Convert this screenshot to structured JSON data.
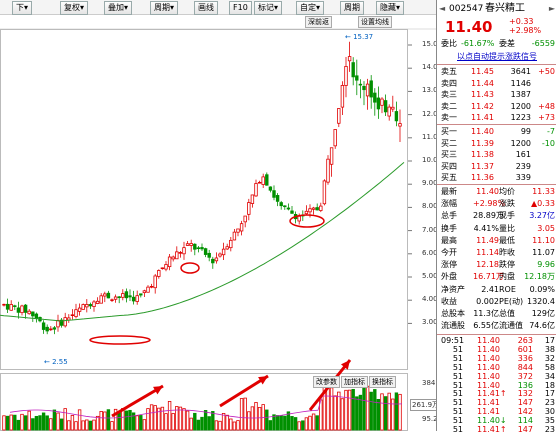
{
  "toolbar": {
    "buttons": [
      {
        "label": "下",
        "has_arrow": true
      },
      {
        "label": "复权",
        "has_arrow": true
      },
      {
        "label": "叠加",
        "has_arrow": true
      },
      {
        "label": "周期",
        "has_arrow": true
      },
      {
        "label": "画线",
        "has_arrow": false
      },
      {
        "label": "F10",
        "has_arrow": false
      },
      {
        "label": "标记",
        "has_arrow": true
      },
      {
        "label": "自定",
        "has_arrow": true
      },
      {
        "label": "周期",
        "has_arrow": false
      },
      {
        "label": "隐藏",
        "has_arrow": true
      }
    ],
    "sub_buttons": [
      "深前返",
      "设置均线"
    ]
  },
  "chart": {
    "price_axis": [
      "15.00",
      "14.00",
      "13.00",
      "12.00",
      "11.00",
      "10.00",
      "9.00",
      "8.00",
      "7.00",
      "6.00",
      "5.00",
      "4.00",
      "3.00"
    ],
    "high_label": "15.37",
    "low_label": "2.55",
    "volume_axis": [
      "384.00",
      "261.9万",
      "95.20"
    ],
    "volume_buttons": [
      "改参数",
      "加指标",
      "换指标"
    ],
    "colors": {
      "up": "#e00000",
      "down": "#009000",
      "ma": "#2a9a2a",
      "arrow": "#e00000"
    }
  },
  "quote": {
    "code": "002547",
    "name": "春兴精工",
    "price": "11.40",
    "change": "+0.33",
    "change_pct": "+2.98%",
    "weibi_label": "委比",
    "weibi": "-61.67%",
    "weicha_label": "委差",
    "weicha": "-6559",
    "notice": "以点自动提示涨跌信号",
    "asks": [
      {
        "label": "卖五",
        "price": "11.45",
        "vol": "3641",
        "chg": "+50"
      },
      {
        "label": "卖四",
        "price": "11.44",
        "vol": "1146",
        "chg": ""
      },
      {
        "label": "卖三",
        "price": "11.43",
        "vol": "1387",
        "chg": ""
      },
      {
        "label": "卖二",
        "price": "11.42",
        "vol": "1200",
        "chg": "+48"
      },
      {
        "label": "卖一",
        "price": "11.41",
        "vol": "1223",
        "chg": "+73"
      }
    ],
    "bids": [
      {
        "label": "买一",
        "price": "11.40",
        "vol": "99",
        "chg": "-7"
      },
      {
        "label": "买二",
        "price": "11.39",
        "vol": "1200",
        "chg": "-10"
      },
      {
        "label": "买三",
        "price": "11.38",
        "vol": "161",
        "chg": ""
      },
      {
        "label": "买四",
        "price": "11.37",
        "vol": "239",
        "chg": ""
      },
      {
        "label": "买五",
        "price": "11.36",
        "vol": "339",
        "chg": ""
      }
    ],
    "stats": [
      {
        "l1": "最新",
        "v1": "11.40",
        "l2": "均价",
        "v2": "11.33",
        "c1": "red",
        "c2": "red"
      },
      {
        "l1": "涨幅",
        "v1": "+2.98%",
        "l2": "涨跌",
        "v2": "▲0.33",
        "c1": "red",
        "c2": "red"
      },
      {
        "l1": "总手",
        "v1": "28.89万",
        "l2": "现手",
        "v2": "3.27亿",
        "c1": "blk",
        "c2": "blu"
      },
      {
        "l1": "换手",
        "v1": "4.41%",
        "l2": "量比",
        "v2": "3.05",
        "c1": "blk",
        "c2": "red"
      },
      {
        "l1": "最高",
        "v1": "11.49",
        "l2": "最低",
        "v2": "11.10",
        "c1": "red",
        "c2": "red"
      },
      {
        "l1": "今开",
        "v1": "11.14",
        "l2": "昨收",
        "v2": "11.07",
        "c1": "red",
        "c2": "blk"
      },
      {
        "l1": "涨停",
        "v1": "12.18",
        "l2": "跌停",
        "v2": "9.96",
        "c1": "red",
        "c2": "grn"
      },
      {
        "l1": "外盘",
        "v1": "16.71万",
        "l2": "内盘",
        "v2": "12.18万",
        "c1": "red",
        "c2": "grn"
      },
      {
        "l1": "净资产",
        "v1": "2.41",
        "l2": "ROE",
        "v2": "0.09%",
        "c1": "blk",
        "c2": "blk"
      },
      {
        "l1": "收益",
        "v1": "0.002",
        "l2": "PE(动)",
        "v2": "1320.4",
        "c1": "blk",
        "c2": "blk"
      },
      {
        "l1": "总股本",
        "v1": "11.3亿",
        "l2": "总值",
        "v2": "129亿",
        "c1": "blk",
        "c2": "blk"
      },
      {
        "l1": "流通股",
        "v1": "6.55亿",
        "l2": "流通值",
        "v2": "74.6亿",
        "c1": "blk",
        "c2": "blk"
      }
    ],
    "ticks": [
      {
        "time": "09:51",
        "price": "11.40",
        "vol": "263",
        "n": "17",
        "pc": "red",
        "vc": "red"
      },
      {
        "time": "51",
        "price": "11.40",
        "vol": "601",
        "n": "38",
        "pc": "red",
        "vc": "red"
      },
      {
        "time": "51",
        "price": "11.40",
        "vol": "336",
        "n": "32",
        "pc": "red",
        "vc": "red"
      },
      {
        "time": "51",
        "price": "11.40",
        "vol": "844",
        "n": "58",
        "pc": "red",
        "vc": "red"
      },
      {
        "time": "51",
        "price": "11.40",
        "vol": "372",
        "n": "34",
        "pc": "red",
        "vc": "red"
      },
      {
        "time": "51",
        "price": "11.40",
        "vol": "136",
        "n": "18",
        "pc": "red",
        "vc": "grn"
      },
      {
        "time": "51",
        "price": "11.41↑",
        "vol": "132",
        "n": "17",
        "pc": "red",
        "vc": "red"
      },
      {
        "time": "51",
        "price": "11.41",
        "vol": "147",
        "n": "23",
        "pc": "red",
        "vc": "red"
      },
      {
        "time": "51",
        "price": "11.41",
        "vol": "142",
        "n": "30",
        "pc": "red",
        "vc": "red"
      },
      {
        "time": "51",
        "price": "11.40↓",
        "vol": "114",
        "n": "35",
        "pc": "grn",
        "vc": "grn"
      },
      {
        "time": "51",
        "price": "11.41↑",
        "vol": "147",
        "n": "23",
        "pc": "red",
        "vc": "red"
      }
    ]
  }
}
